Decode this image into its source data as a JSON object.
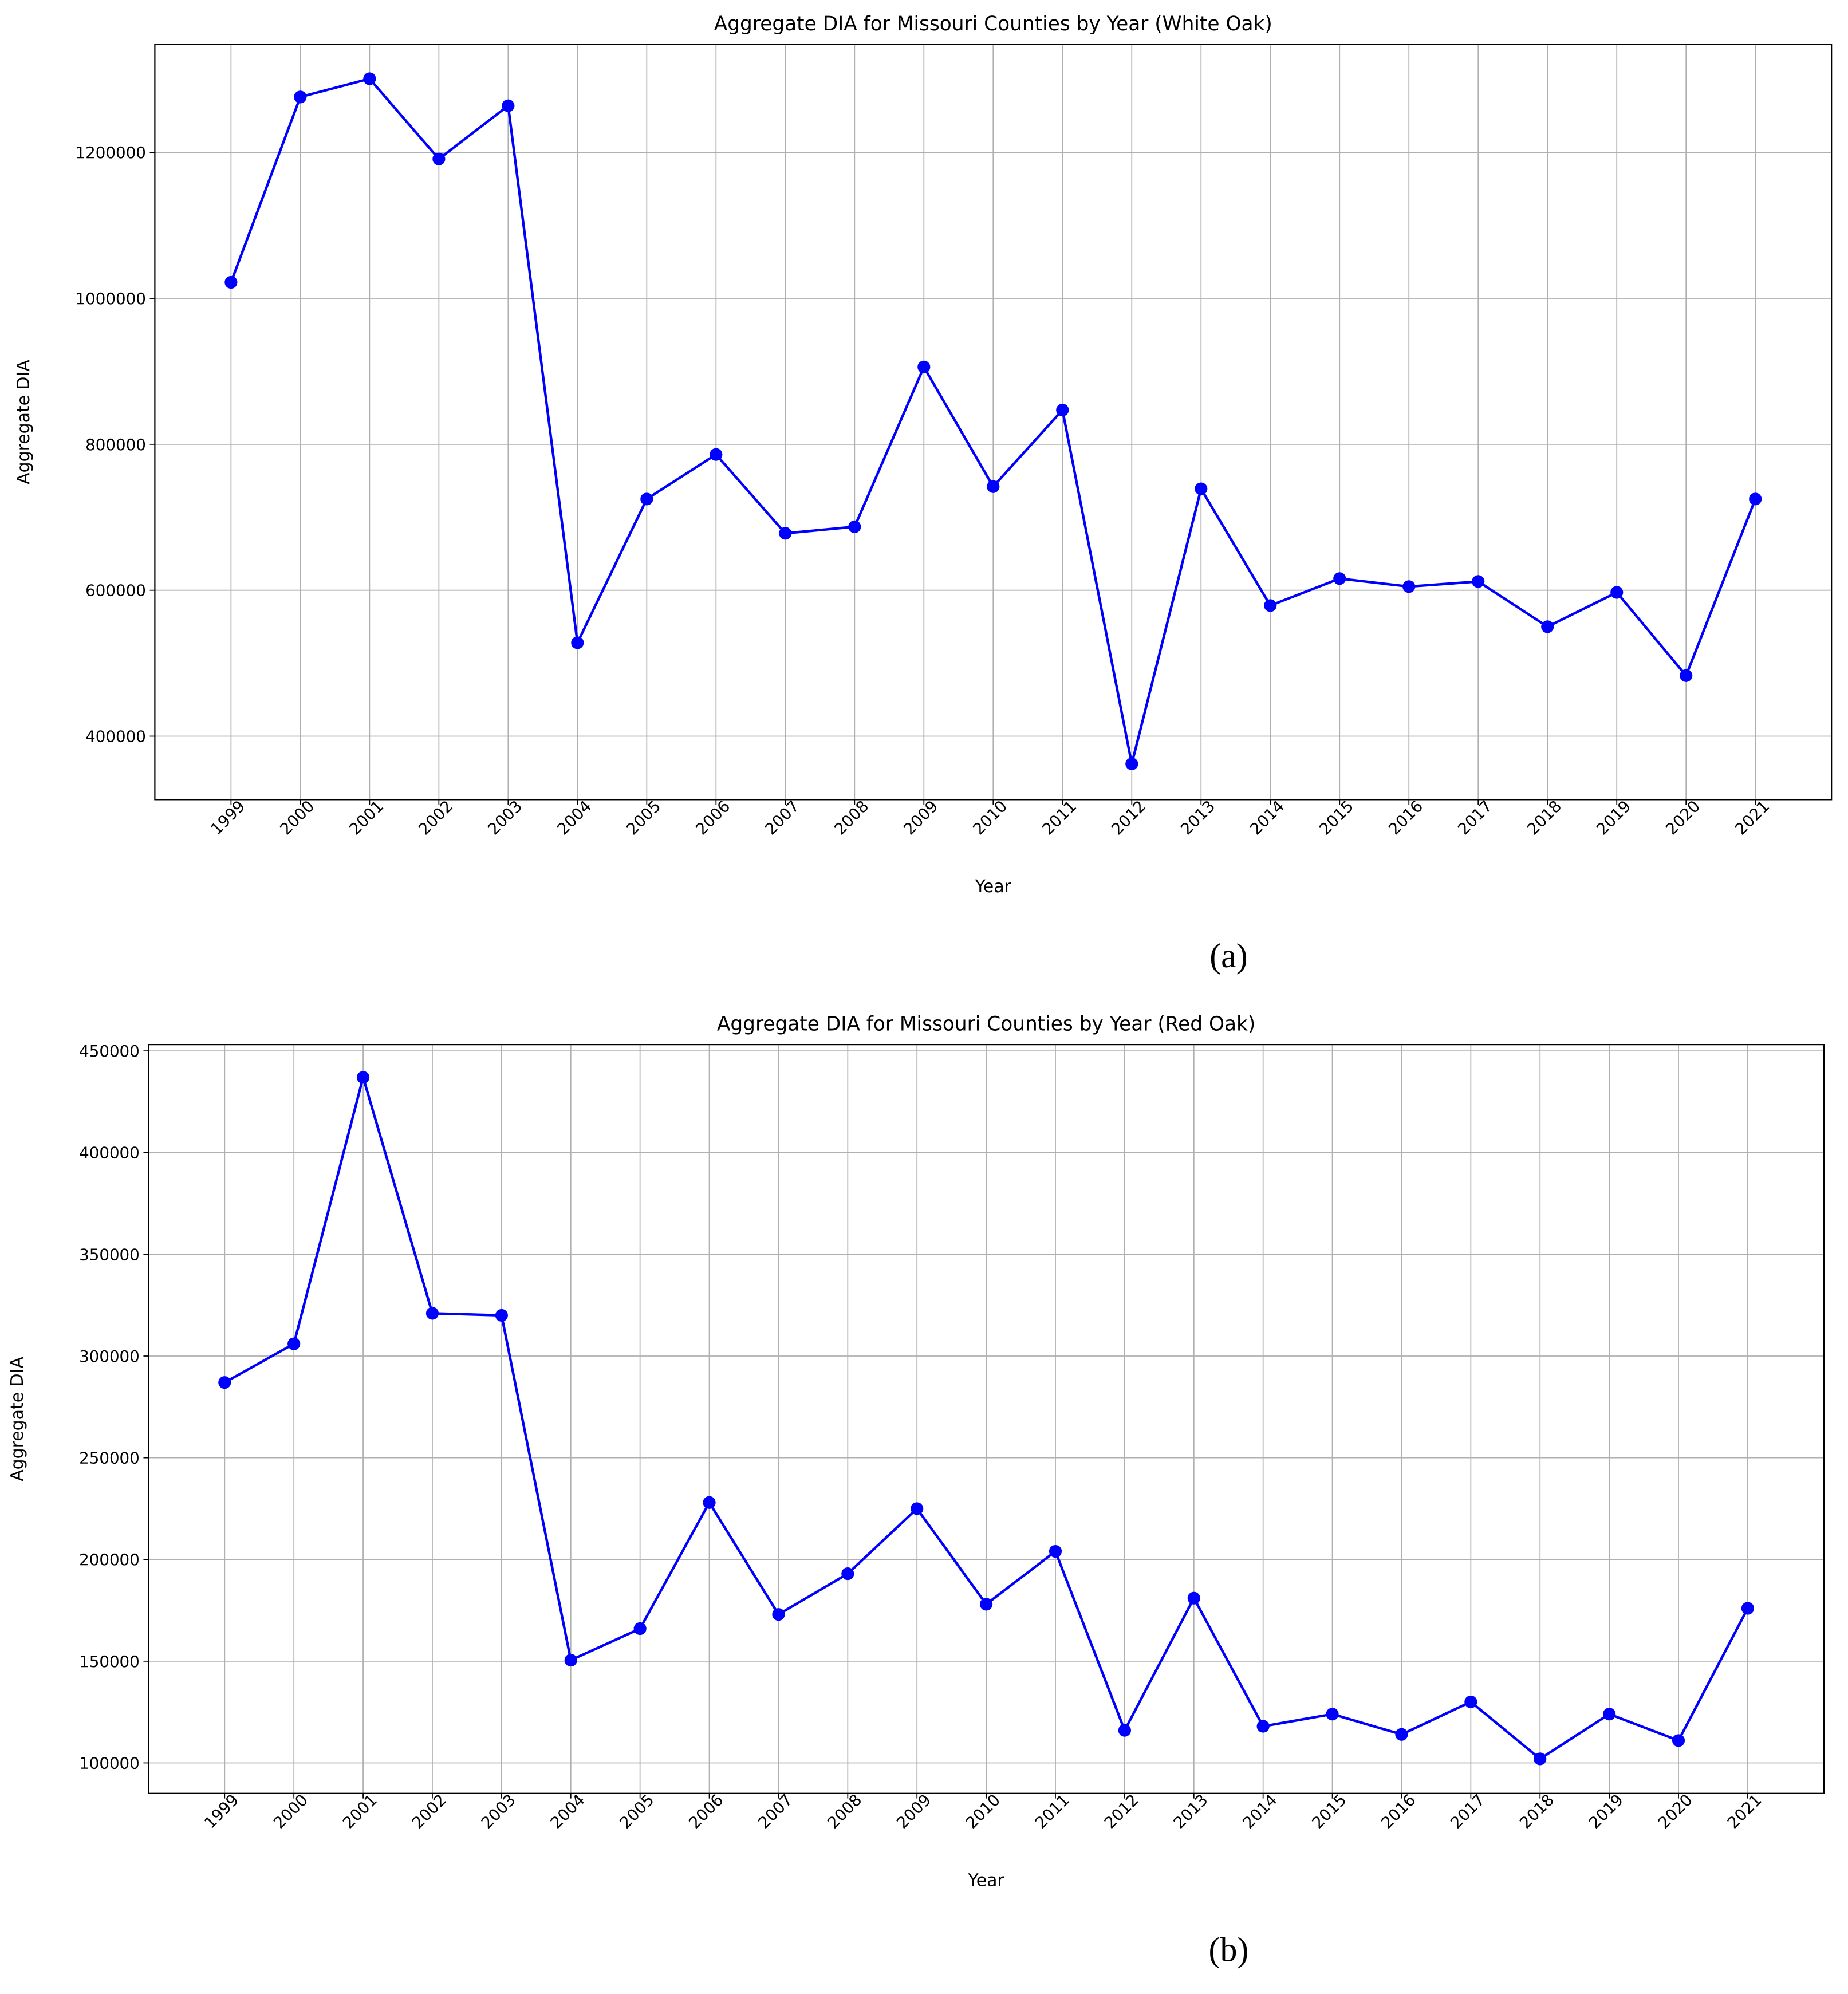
{
  "chart_data": [
    {
      "type": "line",
      "title": "Aggregate DIA for Missouri Counties by Year (White Oak)",
      "xlabel": "Year",
      "ylabel": "Aggregate DIA",
      "caption": "(a)",
      "categories": [
        "1999",
        "2000",
        "2001",
        "2002",
        "2003",
        "2004",
        "2005",
        "2006",
        "2007",
        "2008",
        "2009",
        "2010",
        "2011",
        "2012",
        "2013",
        "2014",
        "2015",
        "2016",
        "2017",
        "2018",
        "2019",
        "2020",
        "2021"
      ],
      "series": [
        {
          "color": "#0000ff",
          "values": [
            1022000,
            1276000,
            1301000,
            1191000,
            1264000,
            528000,
            725000,
            786000,
            678000,
            687000,
            906000,
            742000,
            847000,
            362000,
            739000,
            579000,
            616000,
            605000,
            612000,
            550000,
            597000,
            483000,
            725000
          ]
        }
      ],
      "ylim": [
        313000,
        1348000
      ],
      "yticks": [
        400000,
        600000,
        800000,
        1000000,
        1200000
      ],
      "grid": true
    },
    {
      "type": "line",
      "title": "Aggregate DIA for Missouri Counties by Year (Red Oak)",
      "xlabel": "Year",
      "ylabel": "Aggregate DIA",
      "caption": "(b)",
      "categories": [
        "1999",
        "2000",
        "2001",
        "2002",
        "2003",
        "2004",
        "2005",
        "2006",
        "2007",
        "2008",
        "2009",
        "2010",
        "2011",
        "2012",
        "2013",
        "2014",
        "2015",
        "2016",
        "2017",
        "2018",
        "2019",
        "2020",
        "2021"
      ],
      "series": [
        {
          "color": "#0000ff",
          "values": [
            287000,
            306000,
            437000,
            321000,
            320000,
            150500,
            166000,
            228000,
            173000,
            193000,
            225000,
            178000,
            204000,
            116000,
            181000,
            118000,
            124000,
            114000,
            130000,
            102000,
            124000,
            111000,
            176000
          ]
        }
      ],
      "ylim": [
        85000,
        453100
      ],
      "yticks": [
        100000,
        150000,
        200000,
        250000,
        300000,
        350000,
        400000,
        450000
      ],
      "grid": true
    }
  ]
}
